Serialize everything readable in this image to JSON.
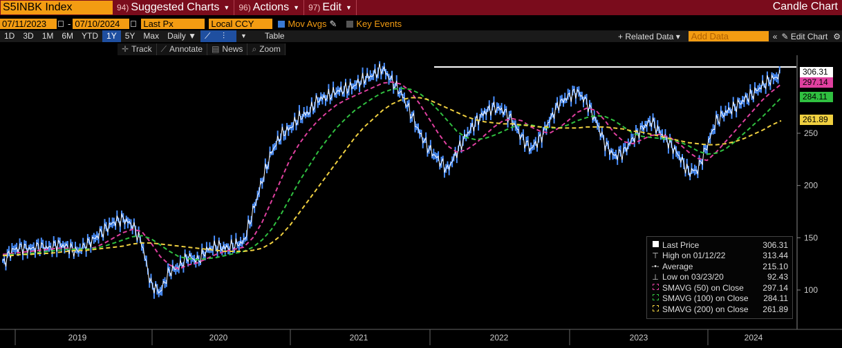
{
  "topbar": {
    "ticker": "S5INBK Index",
    "menus": [
      {
        "num": "94)",
        "label": "Suggested Charts"
      },
      {
        "num": "96)",
        "label": "Actions"
      },
      {
        "num": "97)",
        "label": "Edit"
      }
    ],
    "chart_type": "Candle Chart"
  },
  "controls": {
    "start_date": "07/11/2023",
    "end_date": "07/10/2024",
    "field": "Last Px",
    "currency": "Local CCY",
    "mov_avgs_label": "Mov Avgs",
    "key_events_label": "Key Events",
    "periods": [
      "1D",
      "3D",
      "1M",
      "6M",
      "YTD",
      "1Y",
      "5Y",
      "Max"
    ],
    "active_period": "1Y",
    "frequency": "Daily",
    "table_label": "Table",
    "related_data_label": "+ Related Data",
    "add_data_placeholder": "Add Data",
    "edit_chart_label": "Edit Chart"
  },
  "tools": [
    "Track",
    "Annotate",
    "News",
    "Zoom"
  ],
  "legend": {
    "rows": [
      {
        "label": "Last Price",
        "value": "306.31"
      },
      {
        "label": "High on 01/12/22",
        "value": "313.44"
      },
      {
        "label": "Average",
        "value": "215.10"
      },
      {
        "label": "Low on 03/23/20",
        "value": "92.43"
      },
      {
        "label": "SMAVG (50)  on Close",
        "value": "297.14"
      },
      {
        "label": "SMAVG (100)  on Close",
        "value": "284.11"
      },
      {
        "label": "SMAVG (200)  on Close",
        "value": "261.89"
      }
    ]
  },
  "price_tags": [
    {
      "value": "306.31",
      "color": "#ffffff"
    },
    {
      "value": "297.14",
      "color": "#e040a0"
    },
    {
      "value": "284.11",
      "color": "#30c040"
    },
    {
      "value": "261.89",
      "color": "#f0d040"
    }
  ],
  "colors": {
    "price": "#ffffff",
    "candle": "#4a90ff",
    "sma50": "#e040a0",
    "sma100": "#30c040",
    "sma200": "#f0d040",
    "accent": "#f39c12",
    "topbar": "#7a0c1c"
  },
  "chart_data": {
    "type": "line",
    "x_ticks": [
      "2019",
      "2020",
      "2021",
      "2022",
      "2023",
      "2024"
    ],
    "y_ticks": [
      100,
      150,
      200,
      250
    ],
    "ylim": [
      75,
      330
    ],
    "series": [
      {
        "name": "Last Price",
        "values": [
          125,
          138,
          141,
          139,
          142,
          140,
          144,
          141,
          137,
          143,
          150,
          158,
          165,
          168,
          162,
          145,
          105,
          98,
          118,
          122,
          132,
          128,
          138,
          142,
          140,
          143,
          146,
          175,
          205,
          232,
          248,
          255,
          265,
          270,
          282,
          285,
          290,
          292,
          296,
          302,
          306,
          312,
          300,
          288,
          270,
          250,
          235,
          225,
          215,
          232,
          248,
          260,
          270,
          275,
          272,
          262,
          246,
          235,
          245,
          262,
          278,
          285,
          290,
          280,
          262,
          240,
          228,
          232,
          245,
          255,
          262,
          250,
          240,
          228,
          213,
          215,
          238,
          262,
          270,
          275,
          282,
          288,
          296,
          302,
          306
        ]
      },
      {
        "name": "SMAVG (50)",
        "values": [
          134,
          135,
          136,
          137,
          138,
          139,
          140,
          140,
          139,
          139,
          141,
          145,
          150,
          155,
          158,
          156,
          145,
          132,
          124,
          120,
          124,
          126,
          130,
          134,
          137,
          139,
          141,
          150,
          165,
          185,
          205,
          225,
          240,
          252,
          262,
          270,
          277,
          282,
          286,
          290,
          294,
          298,
          299,
          297,
          290,
          278,
          264,
          250,
          238,
          232,
          234,
          240,
          248,
          256,
          262,
          264,
          262,
          256,
          252,
          250,
          255,
          262,
          270,
          274,
          272,
          262,
          250,
          242,
          240,
          244,
          248,
          249,
          246,
          240,
          232,
          226,
          224,
          232,
          242,
          252,
          262,
          272,
          282,
          290,
          297
        ]
      },
      {
        "name": "SMAVG (100)",
        "values": [
          133,
          134,
          134,
          135,
          136,
          137,
          138,
          139,
          139,
          139,
          140,
          142,
          145,
          148,
          151,
          152,
          149,
          143,
          137,
          132,
          130,
          129,
          130,
          131,
          133,
          135,
          137,
          141,
          148,
          158,
          172,
          188,
          204,
          218,
          232,
          244,
          255,
          264,
          272,
          278,
          284,
          289,
          292,
          293,
          292,
          288,
          281,
          272,
          262,
          252,
          246,
          244,
          245,
          248,
          252,
          256,
          258,
          258,
          256,
          255,
          255,
          258,
          262,
          265,
          267,
          266,
          262,
          256,
          250,
          247,
          246,
          245,
          244,
          242,
          238,
          233,
          230,
          231,
          235,
          242,
          250,
          258,
          266,
          275,
          284
        ]
      },
      {
        "name": "SMAVG (200)",
        "values": [
          133,
          133,
          134,
          134,
          135,
          135,
          136,
          137,
          138,
          138,
          139,
          140,
          141,
          142,
          144,
          145,
          145,
          144,
          143,
          142,
          141,
          140,
          139,
          138,
          137,
          137,
          137,
          138,
          140,
          145,
          152,
          162,
          174,
          186,
          198,
          210,
          222,
          234,
          246,
          256,
          264,
          272,
          278,
          282,
          284,
          284,
          282,
          278,
          274,
          270,
          266,
          263,
          261,
          260,
          259,
          259,
          258,
          257,
          256,
          256,
          255,
          255,
          255,
          256,
          256,
          256,
          255,
          254,
          252,
          251,
          249,
          247,
          245,
          243,
          241,
          240,
          239,
          239,
          240,
          242,
          245,
          249,
          253,
          258,
          262
        ]
      }
    ],
    "high_line": {
      "label": "High on 01/12/22",
      "value": 313.44
    },
    "grid": false,
    "legend_position": "bottom-right"
  }
}
